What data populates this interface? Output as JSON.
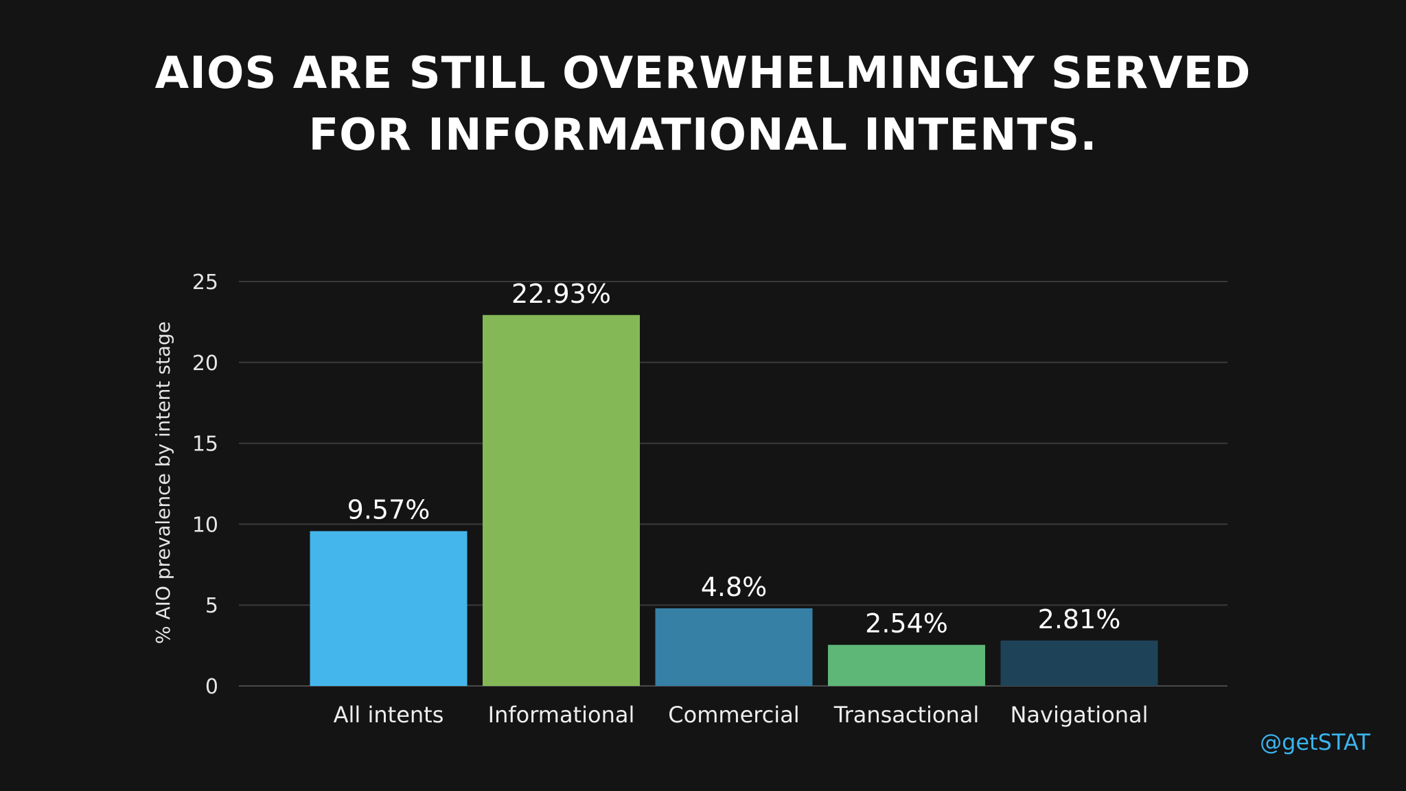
{
  "title_lines": [
    "AIOS ARE STILL OVERWHELMINGLY SERVED",
    "FOR INFORMATIONAL INTENTS."
  ],
  "handle": "@getSTAT",
  "chart_data": {
    "type": "bar",
    "ylabel": "% AIO prevalence by intent stage",
    "ylim": [
      0,
      25
    ],
    "yticks": [
      0,
      5,
      10,
      15,
      20,
      25
    ],
    "grid": true,
    "categories": [
      "All intents",
      "Informational",
      "Commercial",
      "Transactional",
      "Navigational"
    ],
    "values": [
      9.57,
      22.93,
      4.8,
      2.54,
      2.81
    ],
    "data_labels": [
      "9.57%",
      "22.93%",
      "4.8%",
      "2.54%",
      "2.81%"
    ],
    "colors": [
      "#45b6ec",
      "#84b857",
      "#367fa5",
      "#5eb677",
      "#1e4358"
    ]
  }
}
